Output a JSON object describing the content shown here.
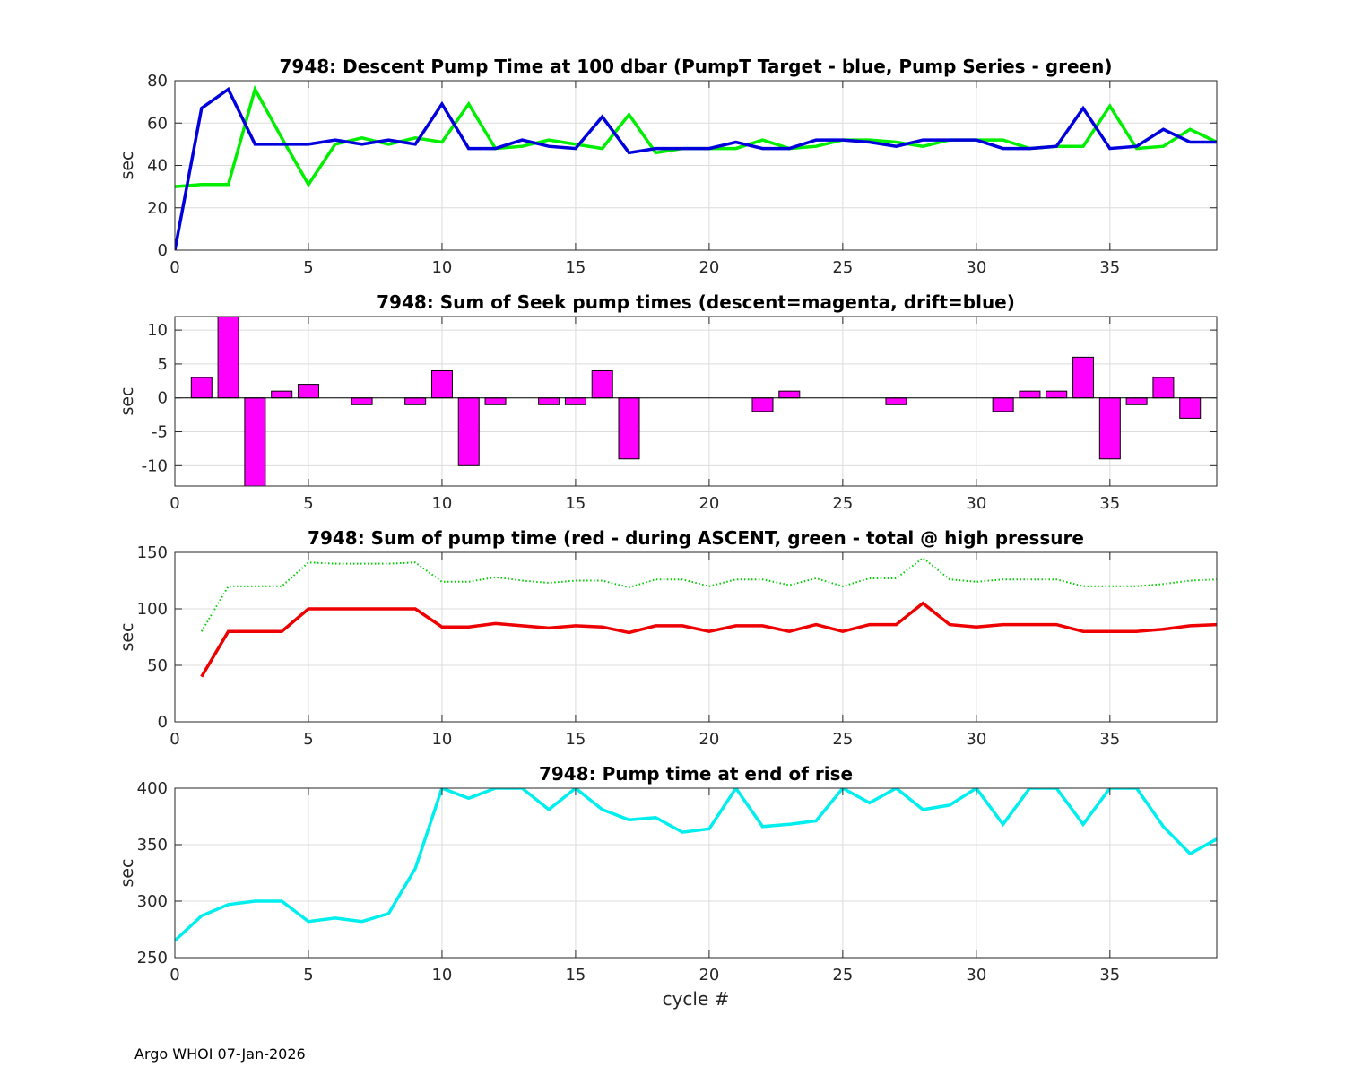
{
  "figure": {
    "footer": "Argo WHOI 07-Jan-2026",
    "xlabel": "cycle #"
  },
  "chart_data": [
    {
      "type": "line",
      "title": "7948: Descent Pump Time at 100 dbar (PumpT Target - blue, Pump Series - green)",
      "xlabel": "",
      "ylabel": "sec",
      "xlim": [
        0,
        39
      ],
      "ylim": [
        0,
        80
      ],
      "xticks": [
        0,
        5,
        10,
        15,
        20,
        25,
        30,
        35
      ],
      "yticks": [
        0,
        20,
        40,
        60,
        80
      ],
      "grid": true,
      "series": [
        {
          "name": "Pump Series",
          "color": "#00ee00",
          "style": "solid",
          "x": [
            0,
            1,
            2,
            3,
            4,
            5,
            6,
            7,
            8,
            9,
            10,
            11,
            12,
            13,
            14,
            15,
            16,
            17,
            18,
            19,
            20,
            21,
            22,
            23,
            24,
            25,
            26,
            27,
            28,
            29,
            30,
            31,
            32,
            33,
            34,
            35,
            36,
            37,
            38,
            39
          ],
          "values": [
            30,
            31,
            31,
            76,
            53,
            31,
            50,
            53,
            50,
            53,
            51,
            69,
            48,
            49,
            52,
            50,
            48,
            64,
            46,
            48,
            48,
            48,
            52,
            48,
            49,
            52,
            52,
            51,
            49,
            52,
            52,
            52,
            48,
            49,
            49,
            68,
            48,
            49,
            57,
            51
          ]
        },
        {
          "name": "PumpT Target",
          "color": "#0000dd",
          "style": "solid",
          "x": [
            0,
            1,
            2,
            3,
            4,
            5,
            6,
            7,
            8,
            9,
            10,
            11,
            12,
            13,
            14,
            15,
            16,
            17,
            18,
            19,
            20,
            21,
            22,
            23,
            24,
            25,
            26,
            27,
            28,
            29,
            30,
            31,
            32,
            33,
            34,
            35,
            36,
            37,
            38,
            39
          ],
          "values": [
            0,
            67,
            76,
            50,
            50,
            50,
            52,
            50,
            52,
            50,
            69,
            48,
            48,
            52,
            49,
            48,
            63,
            46,
            48,
            48,
            48,
            51,
            48,
            48,
            52,
            52,
            51,
            49,
            52,
            52,
            52,
            48,
            48,
            49,
            67,
            48,
            49,
            57,
            51,
            51
          ]
        }
      ]
    },
    {
      "type": "bar",
      "title": "7948: Sum of Seek pump times (descent=magenta, drift=blue)",
      "xlabel": "",
      "ylabel": "sec",
      "xlim": [
        0,
        39
      ],
      "ylim": [
        -13,
        12
      ],
      "xticks": [
        0,
        5,
        10,
        15,
        20,
        25,
        30,
        35
      ],
      "yticks": [
        -10,
        -5,
        0,
        5,
        10
      ],
      "grid": true,
      "series": [
        {
          "name": "descent",
          "color": "#ff00ff",
          "x": [
            1,
            2,
            3,
            4,
            5,
            7,
            9,
            10,
            11,
            12,
            14,
            15,
            16,
            17,
            22,
            23,
            27,
            31,
            32,
            33,
            34,
            35,
            36,
            37,
            38
          ],
          "values": [
            3,
            12,
            -13,
            1,
            2,
            -1,
            -1,
            4,
            -10,
            -1,
            -1,
            -1,
            4,
            -9,
            -2,
            1,
            -1,
            -2,
            1,
            1,
            6,
            -9,
            -1,
            3,
            -3
          ]
        }
      ]
    },
    {
      "type": "line",
      "title": "7948: Sum of pump time (red - during ASCENT, green - total @ high pressure",
      "xlabel": "",
      "ylabel": "sec",
      "xlim": [
        0,
        39
      ],
      "ylim": [
        0,
        150
      ],
      "xticks": [
        0,
        5,
        10,
        15,
        20,
        25,
        30,
        35
      ],
      "yticks": [
        0,
        50,
        100,
        150
      ],
      "grid": true,
      "series": [
        {
          "name": "total @ high pressure",
          "color": "#00cc00",
          "style": "dotted",
          "x": [
            1,
            2,
            3,
            4,
            5,
            6,
            7,
            8,
            9,
            10,
            11,
            12,
            13,
            14,
            15,
            16,
            17,
            18,
            19,
            20,
            21,
            22,
            23,
            24,
            25,
            26,
            27,
            28,
            29,
            30,
            31,
            32,
            33,
            34,
            35,
            36,
            37,
            38,
            39
          ],
          "values": [
            80,
            120,
            120,
            120,
            141,
            140,
            140,
            140,
            141,
            124,
            124,
            128,
            125,
            123,
            125,
            125,
            119,
            126,
            126,
            120,
            126,
            126,
            121,
            127,
            120,
            127,
            127,
            145,
            126,
            124,
            126,
            126,
            126,
            120,
            120,
            120,
            122,
            125,
            126
          ]
        },
        {
          "name": "during ASCENT",
          "color": "#ee0000",
          "style": "solid",
          "x": [
            1,
            2,
            3,
            4,
            5,
            6,
            7,
            8,
            9,
            10,
            11,
            12,
            13,
            14,
            15,
            16,
            17,
            18,
            19,
            20,
            21,
            22,
            23,
            24,
            25,
            26,
            27,
            28,
            29,
            30,
            31,
            32,
            33,
            34,
            35,
            36,
            37,
            38,
            39
          ],
          "values": [
            40,
            80,
            80,
            80,
            100,
            100,
            100,
            100,
            100,
            84,
            84,
            87,
            85,
            83,
            85,
            84,
            79,
            85,
            85,
            80,
            85,
            85,
            80,
            86,
            80,
            86,
            86,
            105,
            86,
            84,
            86,
            86,
            86,
            80,
            80,
            80,
            82,
            85,
            86
          ]
        }
      ]
    },
    {
      "type": "line",
      "title": "7948: Pump time at end of rise",
      "xlabel": "cycle #",
      "ylabel": "sec",
      "xlim": [
        0,
        39
      ],
      "ylim": [
        250,
        400
      ],
      "xticks": [
        0,
        5,
        10,
        15,
        20,
        25,
        30,
        35
      ],
      "yticks": [
        250,
        300,
        350,
        400
      ],
      "grid": true,
      "series": [
        {
          "name": "end of rise",
          "color": "#00eeee",
          "style": "solid",
          "x": [
            0,
            1,
            2,
            3,
            4,
            5,
            6,
            7,
            8,
            9,
            10,
            11,
            12,
            13,
            14,
            15,
            16,
            17,
            18,
            19,
            20,
            21,
            22,
            23,
            24,
            25,
            26,
            27,
            28,
            29,
            30,
            31,
            32,
            33,
            34,
            35,
            36,
            37,
            38,
            39
          ],
          "values": [
            265,
            287,
            297,
            300,
            300,
            282,
            285,
            282,
            289,
            329,
            400,
            391,
            400,
            400,
            381,
            400,
            381,
            372,
            374,
            361,
            364,
            400,
            366,
            368,
            371,
            400,
            387,
            400,
            381,
            385,
            400,
            368,
            400,
            400,
            368,
            400,
            400,
            366,
            342,
            355
          ]
        }
      ]
    }
  ]
}
